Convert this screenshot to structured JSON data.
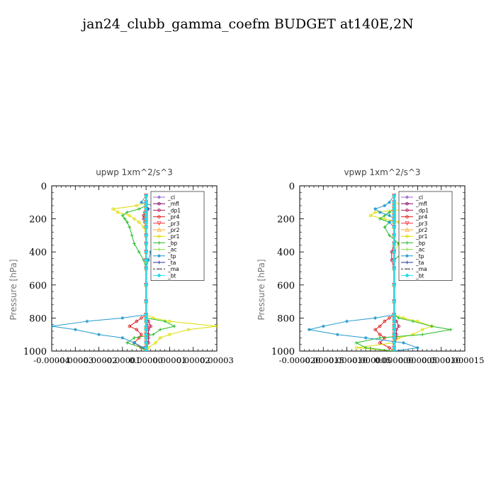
{
  "figure_title": "jan24_clubb_gamma_coefm  BUDGET at140E,2N",
  "chart_data": [
    {
      "type": "line",
      "title": "upwp   1xm^2/s^3",
      "xlabel": "",
      "ylabel": "Pressure [hPa]",
      "xlim": [
        -4e-05,
        3e-05
      ],
      "ylim": [
        1000,
        0
      ],
      "x_tick_labels": [
        "-0.00004",
        "-0.00003",
        "-0.00002",
        "-0.00001",
        "0.00000",
        "0.00001",
        "0.00002",
        "0.00003"
      ],
      "x_ticks": [
        -4e-05,
        -3e-05,
        -2e-05,
        -1e-05,
        0.0,
        1e-05,
        2e-05,
        3e-05
      ],
      "y_ticks": [
        0,
        200,
        400,
        600,
        800,
        1000
      ],
      "y_tick_labels": [
        "0",
        "200",
        "400",
        "600",
        "800",
        "1000"
      ],
      "legend_placement": "top-right",
      "pressure_levels": [
        60,
        100,
        120,
        140,
        160,
        180,
        200,
        220,
        250,
        300,
        350,
        400,
        450,
        500,
        600,
        700,
        780,
        800,
        820,
        850,
        870,
        900,
        920,
        950,
        980,
        1000
      ],
      "series": [
        {
          "name": "_cl",
          "color": "#9966cc",
          "marker": "star",
          "values": [
            0,
            0,
            0,
            0,
            0,
            0,
            0,
            0,
            0,
            0,
            0,
            0,
            0,
            0,
            0,
            0,
            0,
            0,
            0,
            0,
            0,
            0,
            0,
            0,
            0,
            0
          ]
        },
        {
          "name": "_mfl",
          "color": "#880066",
          "marker": "circle",
          "values": [
            0,
            0,
            0,
            0,
            0,
            0,
            0,
            0,
            0,
            0,
            0,
            0,
            0,
            0,
            0,
            0,
            0,
            0,
            0,
            0,
            0,
            0,
            0,
            0,
            0,
            0
          ]
        },
        {
          "name": "_dp1",
          "color": "#b0205a",
          "marker": "circle",
          "values": [
            0,
            0,
            0,
            0,
            -5e-07,
            -1e-06,
            -1e-06,
            -5e-07,
            0,
            0,
            0,
            0,
            0,
            0,
            0,
            0,
            0,
            0,
            1e-06,
            2e-06,
            1e-06,
            1e-06,
            1e-06,
            1e-06,
            0,
            0
          ]
        },
        {
          "name": "_pr4",
          "color": "#dd2222",
          "marker": "circle",
          "values": [
            0,
            0,
            0,
            0,
            0,
            -1e-06,
            0,
            0,
            0,
            0,
            0,
            0,
            0,
            0,
            0,
            0,
            0,
            -2e-06,
            -4e-06,
            -7e-06,
            -4e-06,
            -2e-06,
            -3e-06,
            -5e-06,
            -2e-06,
            0
          ]
        },
        {
          "name": "_pr3",
          "color": "#ff3344",
          "marker": "tri-down",
          "values": [
            0,
            0,
            0,
            0,
            0,
            0,
            0,
            0,
            0,
            0,
            0,
            0,
            0,
            0,
            0,
            0,
            0,
            0,
            0,
            1e-06,
            0,
            0,
            0,
            0,
            0,
            0
          ]
        },
        {
          "name": "_pr2",
          "color": "#ffaa33",
          "marker": "tri-up",
          "values": [
            0,
            0,
            0,
            0,
            0,
            0,
            0,
            0,
            0,
            0,
            0,
            0,
            0,
            0,
            0,
            0,
            0,
            0,
            0,
            0,
            0,
            0,
            0,
            0,
            0,
            0
          ]
        },
        {
          "name": "_pr1",
          "color": "#dddd00",
          "marker": "circle",
          "values": [
            0,
            0,
            -4e-06,
            -1.4e-05,
            -1.2e-05,
            -7e-06,
            -5e-06,
            -3e-06,
            -1e-06,
            0,
            0,
            0,
            0,
            0,
            0,
            0,
            0,
            3e-06,
            1e-05,
            3e-05,
            1.8e-05,
            1e-05,
            6e-06,
            4e-06,
            1e-06,
            0
          ]
        },
        {
          "name": "_bp",
          "color": "#22bb22",
          "marker": "plus",
          "values": [
            0,
            0,
            0,
            -3e-06,
            -8e-06,
            -1e-05,
            -9e-06,
            -8e-06,
            -7e-06,
            -6e-06,
            -5e-06,
            -3e-06,
            -1e-06,
            0,
            0,
            0,
            0,
            0,
            8e-06,
            1.2e-05,
            6e-06,
            3e-06,
            -5e-06,
            -8e-06,
            -2e-06,
            0
          ]
        },
        {
          "name": "_ac",
          "color": "#88dd44",
          "marker": "plus",
          "values": [
            0,
            0,
            0,
            0,
            0,
            0,
            0,
            0,
            0,
            0,
            0,
            0,
            0,
            0,
            0,
            0,
            0,
            0,
            0,
            0,
            0,
            0,
            0,
            0,
            0,
            0
          ]
        },
        {
          "name": "_tp",
          "color": "#2299cc",
          "marker": "star",
          "values": [
            0,
            -2e-06,
            3e-06,
            8e-06,
            4e-06,
            3e-06,
            5e-06,
            7e-06,
            6e-06,
            4e-06,
            3e-06,
            2e-06,
            1e-06,
            0,
            0,
            0,
            0,
            -1e-05,
            -2.5e-05,
            -4e-05,
            -3e-05,
            -2e-05,
            -1e-05,
            -5e-06,
            -1e-06,
            0
          ]
        },
        {
          "name": "_ta",
          "color": "#223399",
          "marker": "plus",
          "values": [
            0,
            0,
            0,
            1e-06,
            0,
            0,
            0,
            0,
            0,
            0,
            0,
            0,
            0,
            0,
            0,
            0,
            0,
            0,
            0,
            0,
            0,
            0,
            0,
            0,
            0,
            0
          ]
        },
        {
          "name": "_ma",
          "color": "#333333",
          "marker": "dash",
          "values": [
            0,
            0,
            0,
            0,
            0,
            0,
            0,
            0,
            0,
            0,
            0,
            0,
            0,
            0,
            0,
            0,
            0,
            0,
            0,
            0,
            0,
            0,
            0,
            0,
            0,
            0
          ]
        },
        {
          "name": "_bt",
          "color": "#22ddee",
          "marker": "diamond",
          "values": [
            0,
            0,
            0,
            0,
            0,
            0,
            0,
            0,
            0,
            0,
            0,
            0,
            0,
            0,
            0,
            0,
            0,
            0,
            0,
            0,
            0,
            0,
            0,
            0,
            0,
            0
          ]
        }
      ]
    },
    {
      "type": "line",
      "title": "vpwp   1xm^2/s^3",
      "xlabel": "",
      "ylabel": "Pressure [hPa]",
      "xlim": [
        -2e-05,
        1.5e-05
      ],
      "ylim": [
        1000,
        0
      ],
      "x_tick_labels": [
        "-0.000020",
        "-0.000015",
        "-0.000010",
        "-0.000005",
        "0.000000",
        "0.000005",
        "0.000010",
        "0.000015"
      ],
      "x_ticks": [
        -2e-05,
        -1.5e-05,
        -1e-05,
        -5e-06,
        0.0,
        5e-06,
        1e-05,
        1.5e-05
      ],
      "y_ticks": [
        0,
        200,
        400,
        600,
        800,
        1000
      ],
      "y_tick_labels": [
        "0",
        "200",
        "400",
        "600",
        "800",
        "1000"
      ],
      "legend_placement": "top-right",
      "pressure_levels": [
        60,
        100,
        120,
        140,
        160,
        180,
        200,
        220,
        250,
        300,
        350,
        400,
        450,
        500,
        600,
        700,
        780,
        800,
        820,
        850,
        870,
        900,
        920,
        950,
        980,
        1000
      ],
      "series": [
        {
          "name": "_cl",
          "color": "#9966cc",
          "marker": "star",
          "values": [
            0,
            0,
            0,
            0,
            0,
            0,
            0,
            0,
            0,
            0,
            0,
            0,
            0,
            0,
            0,
            0,
            0,
            0,
            0,
            0,
            0,
            0,
            0,
            0,
            0,
            0
          ]
        },
        {
          "name": "_mfl",
          "color": "#880066",
          "marker": "circle",
          "values": [
            0,
            0,
            0,
            0,
            0,
            0,
            0,
            0,
            0,
            0,
            0,
            0,
            0,
            0,
            0,
            0,
            0,
            0,
            0,
            0,
            0,
            0,
            0,
            0,
            0,
            0
          ]
        },
        {
          "name": "_dp1",
          "color": "#b0205a",
          "marker": "circle",
          "values": [
            0,
            0,
            0,
            0,
            0,
            0,
            0,
            0,
            0,
            0,
            0,
            -5e-07,
            -5e-07,
            0,
            0,
            0,
            0,
            0,
            5e-07,
            1e-06,
            5e-07,
            5e-07,
            5e-07,
            0,
            0,
            0
          ]
        },
        {
          "name": "_pr4",
          "color": "#dd2222",
          "marker": "circle",
          "values": [
            0,
            0,
            0,
            0,
            0,
            0,
            0,
            0,
            0,
            0,
            0,
            0,
            0,
            0,
            0,
            0,
            0,
            -1e-06,
            -2e-06,
            -3e-06,
            -4e-06,
            -3e-06,
            -2e-06,
            -3e-06,
            -1e-06,
            0
          ]
        },
        {
          "name": "_pr3",
          "color": "#ff3344",
          "marker": "tri-down",
          "values": [
            0,
            0,
            0,
            0,
            0,
            0,
            0,
            0,
            0,
            0,
            0,
            0,
            0,
            0,
            0,
            0,
            0,
            0,
            0,
            0,
            0,
            0,
            0,
            0,
            0,
            0
          ]
        },
        {
          "name": "_pr2",
          "color": "#ffaa33",
          "marker": "tri-up",
          "values": [
            0,
            0,
            0,
            0,
            0,
            0,
            0,
            0,
            0,
            0,
            0,
            0,
            0,
            0,
            0,
            0,
            0,
            0,
            0,
            0,
            0,
            0,
            0,
            0,
            0,
            0
          ]
        },
        {
          "name": "_pr1",
          "color": "#dddd00",
          "marker": "circle",
          "values": [
            0,
            0,
            2e-06,
            3e-06,
            -4e-06,
            -5e-06,
            -2e-06,
            1e-06,
            2e-06,
            2e-06,
            1e-06,
            0,
            0,
            0,
            0,
            0,
            0,
            2e-06,
            5e-06,
            8e-06,
            6e-06,
            4e-06,
            1e-06,
            0,
            -8e-06,
            0
          ]
        },
        {
          "name": "_bp",
          "color": "#22bb22",
          "marker": "plus",
          "values": [
            0,
            0,
            0,
            0,
            -1e-06,
            -2e-06,
            -3e-06,
            -1e-06,
            -2e-06,
            -1e-06,
            1e-06,
            2e-06,
            0,
            0,
            0,
            0,
            0,
            1e-06,
            4e-06,
            8e-06,
            1.2e-05,
            6e-06,
            -3e-06,
            -8e-06,
            -6e-06,
            0
          ]
        },
        {
          "name": "_ac",
          "color": "#88dd44",
          "marker": "plus",
          "values": [
            0,
            0,
            0,
            0,
            0,
            0,
            0,
            0,
            0,
            0,
            0,
            0,
            0,
            0,
            0,
            0,
            0,
            0,
            0,
            0,
            0,
            0,
            0,
            0,
            0,
            0
          ]
        },
        {
          "name": "_tp",
          "color": "#2299cc",
          "marker": "star",
          "values": [
            0,
            -1e-06,
            -2e-06,
            -4e-06,
            -3e-06,
            -1e-06,
            0,
            -1e-06,
            0,
            0,
            0,
            0,
            0,
            0,
            0,
            0,
            0,
            -4e-06,
            -1e-05,
            -1.5e-05,
            -1.8e-05,
            -1.2e-05,
            -6e-06,
            2e-06,
            5e-06,
            0
          ]
        },
        {
          "name": "_ta",
          "color": "#223399",
          "marker": "plus",
          "values": [
            0,
            0,
            0,
            0,
            0,
            0,
            0,
            0,
            0,
            0,
            0,
            0,
            0,
            0,
            0,
            0,
            0,
            0,
            0,
            0,
            0,
            0,
            0,
            0,
            0,
            0
          ]
        },
        {
          "name": "_ma",
          "color": "#333333",
          "marker": "dash",
          "values": [
            0,
            0,
            0,
            0,
            0,
            0,
            0,
            0,
            0,
            0,
            0,
            0,
            0,
            0,
            0,
            0,
            0,
            0,
            0,
            0,
            0,
            0,
            0,
            0,
            0,
            0
          ]
        },
        {
          "name": "_bt",
          "color": "#22ddee",
          "marker": "diamond",
          "values": [
            0,
            0,
            0,
            0,
            0,
            0,
            0,
            0,
            0,
            0,
            0,
            0,
            0,
            0,
            0,
            0,
            0,
            0,
            0,
            0,
            0,
            0,
            0,
            0,
            0,
            0
          ]
        }
      ]
    }
  ]
}
